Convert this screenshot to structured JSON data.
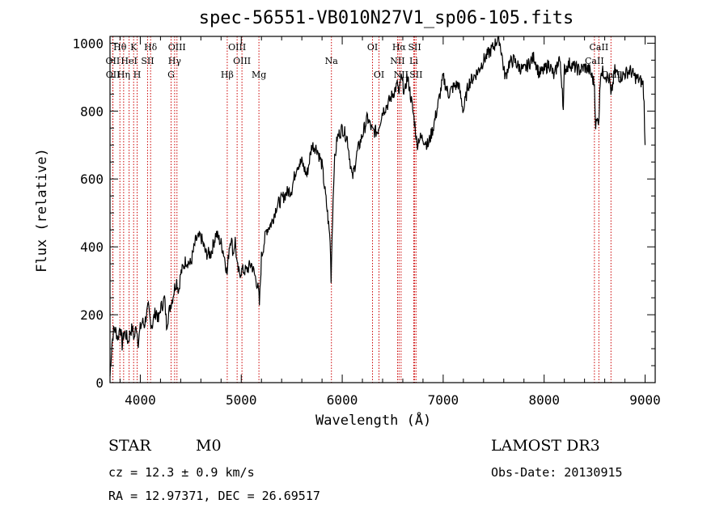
{
  "chart_data": {
    "type": "line",
    "title": "spec-56551-VB010N27V1_sp06-105.fits",
    "xlabel": "Wavelength (Å)",
    "ylabel": "Flux (relative)",
    "xlim": [
      3700,
      9100
    ],
    "ylim": [
      0,
      1020
    ],
    "xticks": [
      4000,
      5000,
      6000,
      7000,
      8000,
      9000
    ],
    "yticks": [
      0,
      200,
      400,
      600,
      800,
      1000
    ],
    "line_color": "#000000",
    "marker_color": "#cc0000",
    "series": [
      {
        "name": "flux",
        "x": [
          3700,
          3720,
          3740,
          3760,
          3780,
          3800,
          3820,
          3840,
          3860,
          3880,
          3900,
          3920,
          3940,
          3960,
          3980,
          4000,
          4020,
          4040,
          4060,
          4080,
          4100,
          4120,
          4140,
          4160,
          4180,
          4200,
          4220,
          4240,
          4260,
          4280,
          4300,
          4320,
          4340,
          4360,
          4380,
          4400,
          4450,
          4500,
          4550,
          4600,
          4650,
          4700,
          4750,
          4800,
          4820,
          4840,
          4860,
          4880,
          4900,
          4920,
          4940,
          4960,
          4980,
          5000,
          5050,
          5100,
          5150,
          5170,
          5180,
          5200,
          5250,
          5300,
          5350,
          5400,
          5450,
          5500,
          5550,
          5600,
          5650,
          5700,
          5750,
          5800,
          5850,
          5880,
          5890,
          5900,
          5920,
          5950,
          6000,
          6050,
          6100,
          6150,
          6200,
          6250,
          6300,
          6350,
          6400,
          6450,
          6500,
          6550,
          6563,
          6580,
          6600,
          6620,
          6640,
          6660,
          6700,
          6720,
          6740,
          6760,
          6800,
          6850,
          6900,
          6950,
          7000,
          7050,
          7100,
          7150,
          7200,
          7250,
          7300,
          7350,
          7400,
          7450,
          7500,
          7550,
          7580,
          7600,
          7620,
          7650,
          7700,
          7750,
          7800,
          7850,
          7900,
          7950,
          8000,
          8050,
          8100,
          8150,
          8180,
          8190,
          8200,
          8250,
          8300,
          8350,
          8400,
          8450,
          8498,
          8510,
          8542,
          8560,
          8600,
          8650,
          8662,
          8680,
          8700,
          8750,
          8800,
          8850,
          8900,
          8950,
          8980,
          8990,
          9000
        ],
        "y": [
          20,
          120,
          160,
          150,
          130,
          170,
          110,
          150,
          140,
          120,
          150,
          160,
          130,
          170,
          120,
          160,
          180,
          170,
          200,
          220,
          180,
          170,
          200,
          210,
          180,
          220,
          230,
          250,
          170,
          200,
          230,
          250,
          280,
          300,
          270,
          320,
          360,
          350,
          420,
          430,
          380,
          380,
          440,
          410,
          390,
          360,
          320,
          400,
          430,
          380,
          420,
          340,
          320,
          330,
          330,
          350,
          300,
          270,
          230,
          370,
          450,
          470,
          520,
          540,
          560,
          570,
          640,
          650,
          610,
          700,
          690,
          640,
          510,
          420,
          310,
          440,
          640,
          720,
          750,
          720,
          600,
          680,
          730,
          780,
          740,
          740,
          800,
          820,
          850,
          880,
          840,
          900,
          880,
          850,
          900,
          880,
          800,
          760,
          700,
          720,
          720,
          700,
          750,
          820,
          900,
          850,
          870,
          880,
          800,
          880,
          900,
          920,
          950,
          970,
          990,
          1020,
          970,
          920,
          900,
          940,
          950,
          930,
          920,
          940,
          960,
          910,
          920,
          940,
          900,
          960,
          870,
          800,
          920,
          940,
          930,
          920,
          930,
          920,
          880,
          760,
          780,
          920,
          910,
          890,
          840,
          880,
          920,
          900,
          910,
          920,
          900,
          890,
          880,
          820,
          700
        ]
      }
    ],
    "lines": [
      {
        "name": "Hθ",
        "x": 3798
      },
      {
        "name": "OII",
        "x": 3727
      },
      {
        "name": "OII",
        "x": 3729
      },
      {
        "name": "K",
        "x": 3934
      },
      {
        "name": "H",
        "x": 3969
      },
      {
        "name": "HeI",
        "x": 3889
      },
      {
        "name": "Hη",
        "x": 3835
      },
      {
        "name": "Hδ",
        "x": 4102
      },
      {
        "name": "SII",
        "x": 4072
      },
      {
        "name": "OIII",
        "x": 4363
      },
      {
        "name": "Hγ",
        "x": 4340
      },
      {
        "name": "G",
        "x": 4305
      },
      {
        "name": "OIII",
        "x": 4959
      },
      {
        "name": "OIII",
        "x": 5007
      },
      {
        "name": "Hβ",
        "x": 4861
      },
      {
        "name": "Mg",
        "x": 5175
      },
      {
        "name": "Na",
        "x": 5893
      },
      {
        "name": "OI",
        "x": 6300
      },
      {
        "name": "OI",
        "x": 6364
      },
      {
        "name": "Hα",
        "x": 6563
      },
      {
        "name": "NII",
        "x": 6548
      },
      {
        "name": "NII",
        "x": 6583
      },
      {
        "name": "SII",
        "x": 6717
      },
      {
        "name": "SII",
        "x": 6731
      },
      {
        "name": "Li",
        "x": 6708
      },
      {
        "name": "CaII",
        "x": 8498
      },
      {
        "name": "CaII",
        "x": 8542
      },
      {
        "name": "CaII",
        "x": 8662
      }
    ],
    "line_label_rows": [
      [
        {
          "text": "Hθ",
          "x": 3798
        },
        {
          "text": "K",
          "x": 3934
        },
        {
          "text": "Hδ",
          "x": 4102
        },
        {
          "text": "OIII",
          "x": 4363
        },
        {
          "text": "OIII",
          "x": 4959
        },
        {
          "text": "OI",
          "x": 6300
        },
        {
          "text": "Hα",
          "x": 6563
        },
        {
          "text": "SII",
          "x": 6717
        },
        {
          "text": "CaII",
          "x": 8542
        }
      ],
      [
        {
          "text": "OII",
          "x": 3727
        },
        {
          "text": "HeI",
          "x": 3889
        },
        {
          "text": "SII",
          "x": 4072
        },
        {
          "text": "Hγ",
          "x": 4340
        },
        {
          "text": "OIII",
          "x": 5007
        },
        {
          "text": "Na",
          "x": 5893
        },
        {
          "text": "NII",
          "x": 6548
        },
        {
          "text": "Li",
          "x": 6708
        },
        {
          "text": "CaII",
          "x": 8498
        }
      ],
      [
        {
          "text": "OII",
          "x": 3729
        },
        {
          "text": "Hη",
          "x": 3835
        },
        {
          "text": "H",
          "x": 3969
        },
        {
          "text": "G",
          "x": 4305
        },
        {
          "text": "Hβ",
          "x": 4861
        },
        {
          "text": "Mg",
          "x": 5175
        },
        {
          "text": "OI",
          "x": 6364
        },
        {
          "text": "NII",
          "x": 6583
        },
        {
          "text": "SII",
          "x": 6731
        },
        {
          "text": "CaII",
          "x": 8662
        }
      ]
    ]
  },
  "info": {
    "class": "STAR",
    "subclass": "M0",
    "survey": "LAMOST DR3",
    "redshift": "cz = 12.3 ± 0.9 km/s",
    "obs_date": "Obs-Date: 20130915",
    "coords": "RA =  12.97371, DEC =  26.69517"
  }
}
